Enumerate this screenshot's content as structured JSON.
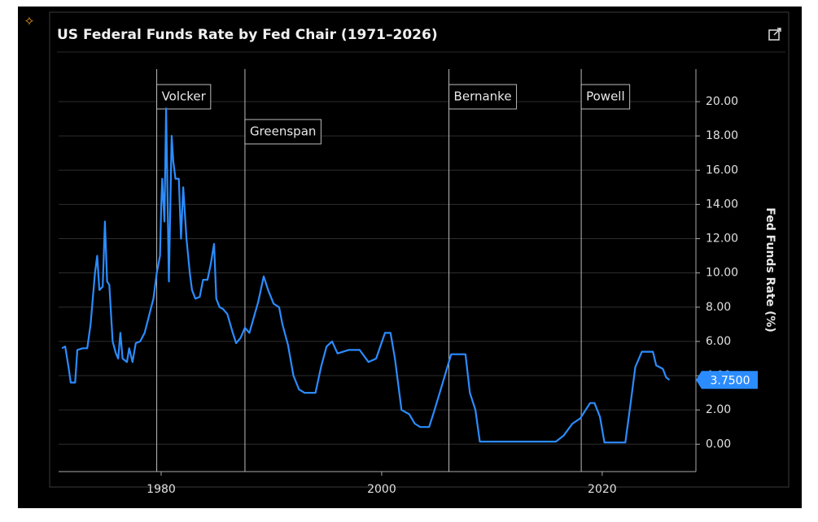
{
  "chart_data": {
    "type": "line",
    "title": "US Federal Funds Rate by Fed Chair (1971–2026)",
    "y_label": "Fed Funds Rate (%)",
    "xlim": [
      1970.7,
      2028.5
    ],
    "ylim": [
      -1.6,
      21.9
    ],
    "xticks": [
      1980,
      2000,
      2020
    ],
    "yticks": [
      {
        "value": 0,
        "label": "0.00"
      },
      {
        "value": 2,
        "label": "2.00"
      },
      {
        "value": 4,
        "label": "4.00"
      },
      {
        "value": 6,
        "label": "6.00"
      },
      {
        "value": 8,
        "label": "8.00"
      },
      {
        "value": 10,
        "label": "10.00"
      },
      {
        "value": 12,
        "label": "12.00"
      },
      {
        "value": 14,
        "label": "14.00"
      },
      {
        "value": 16,
        "label": "16.00"
      },
      {
        "value": 18,
        "label": "18.00"
      },
      {
        "value": 20,
        "label": "20.00"
      }
    ],
    "grid": true,
    "chairs": [
      {
        "label": "Volcker",
        "x": 1979.6
      },
      {
        "label": "Greenspan",
        "x": 1987.6
      },
      {
        "label": "Bernanke",
        "x": 2006.1
      },
      {
        "label": "Powell",
        "x": 2018.1
      }
    ],
    "current_value": {
      "value": 3.75,
      "label": "3.7500"
    },
    "series": [
      {
        "color": "#2b8cff",
        "x": [
          1971.0,
          1971.3,
          1971.6,
          1971.8,
          1972.2,
          1972.4,
          1972.9,
          1973.3,
          1973.6,
          1974.0,
          1974.2,
          1974.4,
          1974.7,
          1974.9,
          1975.1,
          1975.3,
          1975.6,
          1975.9,
          1976.1,
          1976.3,
          1976.5,
          1976.9,
          1977.1,
          1977.4,
          1977.7,
          1978.1,
          1978.5,
          1978.9,
          1979.3,
          1979.6,
          1979.9,
          1980.0,
          1980.1,
          1980.3,
          1980.45,
          1980.7,
          1980.95,
          1981.1,
          1981.3,
          1981.6,
          1981.8,
          1982.0,
          1982.3,
          1982.6,
          1982.8,
          1983.1,
          1983.5,
          1983.8,
          1984.2,
          1984.5,
          1984.8,
          1985.0,
          1985.3,
          1985.6,
          1986.0,
          1986.5,
          1986.8,
          1987.2,
          1987.6,
          1988.0,
          1988.4,
          1988.8,
          1989.3,
          1989.7,
          1990.2,
          1990.7,
          1991.0,
          1991.5,
          1992.0,
          1992.5,
          1993.0,
          1994.0,
          1994.5,
          1995.0,
          1995.5,
          1996.0,
          1997.0,
          1998.0,
          1998.8,
          1999.5,
          2000.3,
          2000.8,
          2001.2,
          2001.8,
          2002.5,
          2003.0,
          2003.5,
          2004.3,
          2004.8,
          2005.5,
          2006.3,
          2007.6,
          2008.0,
          2008.5,
          2008.9,
          2015.8,
          2016.5,
          2017.3,
          2018.0,
          2018.9,
          2019.3,
          2019.8,
          2020.2,
          2022.1,
          2022.6,
          2023.0,
          2023.6,
          2024.6,
          2024.9,
          2025.5,
          2025.8,
          2026.1
        ],
        "values": [
          5.6,
          5.7,
          4.5,
          3.6,
          3.6,
          5.5,
          5.6,
          5.6,
          7.0,
          10.0,
          11.0,
          9.0,
          9.2,
          13.0,
          9.5,
          9.3,
          6.0,
          5.3,
          5.0,
          6.5,
          5.0,
          4.8,
          5.6,
          4.8,
          5.9,
          6.0,
          6.5,
          7.5,
          8.5,
          10.0,
          11.0,
          13.8,
          15.5,
          13.0,
          19.6,
          9.5,
          18.0,
          16.5,
          15.5,
          15.5,
          12.0,
          15.0,
          12.0,
          10.0,
          9.0,
          8.5,
          8.6,
          9.6,
          9.6,
          10.5,
          11.7,
          8.5,
          8.0,
          7.9,
          7.6,
          6.5,
          5.9,
          6.2,
          6.8,
          6.5,
          7.4,
          8.3,
          9.8,
          9.0,
          8.2,
          8.0,
          7.0,
          5.8,
          4.0,
          3.2,
          3.0,
          3.0,
          4.5,
          5.7,
          6.0,
          5.3,
          5.5,
          5.5,
          4.8,
          5.0,
          6.5,
          6.5,
          5.0,
          2.0,
          1.75,
          1.2,
          1.0,
          1.0,
          2.0,
          3.5,
          5.25,
          5.25,
          3.0,
          2.0,
          0.15,
          0.15,
          0.5,
          1.2,
          1.5,
          2.4,
          2.4,
          1.6,
          0.1,
          0.1,
          2.5,
          4.5,
          5.4,
          5.4,
          4.6,
          4.4,
          3.9,
          3.75
        ]
      }
    ]
  }
}
